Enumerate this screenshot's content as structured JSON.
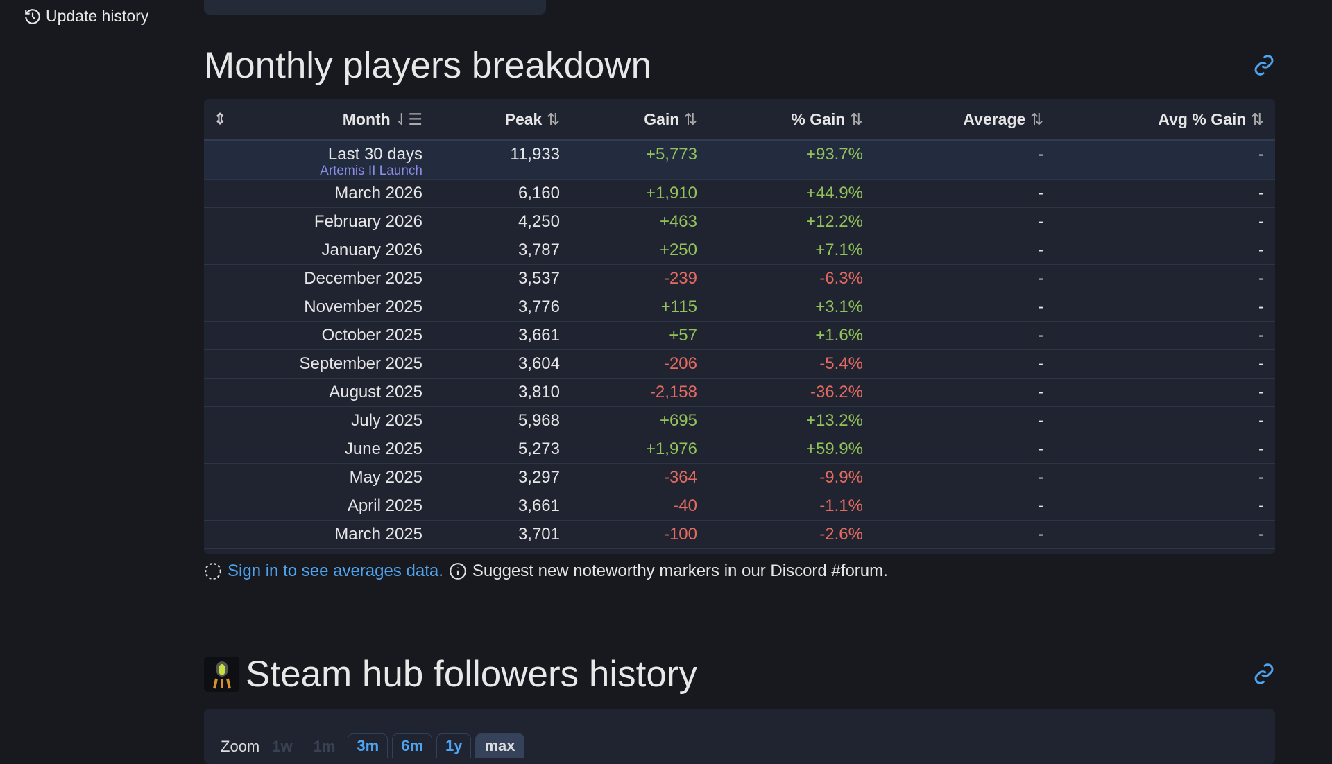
{
  "sidebar": {
    "update_history": "Update history"
  },
  "section1": {
    "title": "Monthly players breakdown",
    "headers": [
      "Month",
      "Peak",
      "Gain",
      "% Gain",
      "Average",
      "Avg % Gain"
    ],
    "rows": [
      {
        "month": "Last 30 days",
        "note": "Artemis II Launch",
        "peak": "11,933",
        "gain": "+5,773",
        "pct": "+93.7%",
        "avg": "-",
        "avgpct": "-",
        "neg": false
      },
      {
        "month": "March 2026",
        "peak": "6,160",
        "gain": "+1,910",
        "pct": "+44.9%",
        "avg": "-",
        "avgpct": "-",
        "neg": false
      },
      {
        "month": "February 2026",
        "peak": "4,250",
        "gain": "+463",
        "pct": "+12.2%",
        "avg": "-",
        "avgpct": "-",
        "neg": false
      },
      {
        "month": "January 2026",
        "peak": "3,787",
        "gain": "+250",
        "pct": "+7.1%",
        "avg": "-",
        "avgpct": "-",
        "neg": false
      },
      {
        "month": "December 2025",
        "peak": "3,537",
        "gain": "-239",
        "pct": "-6.3%",
        "avg": "-",
        "avgpct": "-",
        "neg": true
      },
      {
        "month": "November 2025",
        "peak": "3,776",
        "gain": "+115",
        "pct": "+3.1%",
        "avg": "-",
        "avgpct": "-",
        "neg": false
      },
      {
        "month": "October 2025",
        "peak": "3,661",
        "gain": "+57",
        "pct": "+1.6%",
        "avg": "-",
        "avgpct": "-",
        "neg": false
      },
      {
        "month": "September 2025",
        "peak": "3,604",
        "gain": "-206",
        "pct": "-5.4%",
        "avg": "-",
        "avgpct": "-",
        "neg": true
      },
      {
        "month": "August 2025",
        "peak": "3,810",
        "gain": "-2,158",
        "pct": "-36.2%",
        "avg": "-",
        "avgpct": "-",
        "neg": true
      },
      {
        "month": "July 2025",
        "peak": "5,968",
        "gain": "+695",
        "pct": "+13.2%",
        "avg": "-",
        "avgpct": "-",
        "neg": false
      },
      {
        "month": "June 2025",
        "peak": "5,273",
        "gain": "+1,976",
        "pct": "+59.9%",
        "avg": "-",
        "avgpct": "-",
        "neg": false
      },
      {
        "month": "May 2025",
        "peak": "3,297",
        "gain": "-364",
        "pct": "-9.9%",
        "avg": "-",
        "avgpct": "-",
        "neg": true
      },
      {
        "month": "April 2025",
        "peak": "3,661",
        "gain": "-40",
        "pct": "-1.1%",
        "avg": "-",
        "avgpct": "-",
        "neg": true
      },
      {
        "month": "March 2025",
        "peak": "3,701",
        "gain": "-100",
        "pct": "-2.6%",
        "avg": "-",
        "avgpct": "-",
        "neg": true
      }
    ],
    "footer_link": "Sign in to see averages data.",
    "footer_text": "Suggest new noteworthy markers in our Discord #forum."
  },
  "section2": {
    "title": "Steam hub followers history",
    "zoom_label": "Zoom",
    "zoom_options": [
      "1w",
      "1m",
      "3m",
      "6m",
      "1y",
      "max"
    ]
  }
}
